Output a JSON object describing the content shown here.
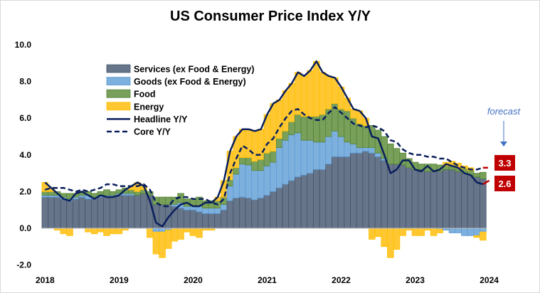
{
  "chart_data": {
    "type": "bar",
    "stacked": true,
    "title": "US Consumer Price Index Y/Y",
    "xlabel": "",
    "ylabel": "",
    "x_tick_labels": [
      "2018",
      "2019",
      "2020",
      "2021",
      "2022",
      "2023",
      "2024"
    ],
    "y_tick_labels": [
      "10.0",
      "8.0",
      "6.0",
      "4.0",
      "2.0",
      "0.0",
      "-2.0"
    ],
    "ylim": [
      -2,
      10
    ],
    "grid": false,
    "legend_placement": "top-left",
    "months_per_year_tick": 12,
    "series": [
      {
        "name": "Services (ex Food & Energy)",
        "kind": "bar",
        "color": "#67758a",
        "edge": "#44546a",
        "values": [
          1.7,
          1.7,
          1.7,
          1.6,
          1.5,
          1.6,
          1.7,
          1.6,
          1.6,
          1.7,
          1.7,
          1.7,
          1.8,
          1.8,
          1.8,
          1.8,
          1.9,
          1.8,
          1.3,
          1.3,
          1.3,
          1.2,
          1.1,
          1.0,
          1.0,
          0.9,
          0.8,
          0.8,
          0.8,
          1.0,
          1.5,
          1.65,
          1.7,
          1.65,
          1.55,
          1.65,
          1.8,
          2.0,
          2.2,
          2.4,
          2.6,
          2.8,
          2.9,
          3.0,
          3.2,
          3.2,
          3.5,
          3.9,
          3.9,
          3.9,
          4.1,
          4.1,
          4.2,
          4.1,
          3.9,
          3.7,
          3.5,
          3.5,
          3.45,
          3.3,
          3.2,
          3.2,
          3.1,
          3.1,
          3.1,
          3.2,
          3.2,
          3.1,
          3.0,
          2.9,
          2.8,
          2.7
        ]
      },
      {
        "name": "Goods (ex Food & Energy)",
        "kind": "bar",
        "color": "#7eb0de",
        "edge": "#5b9bd5",
        "values": [
          0.1,
          0.1,
          0.1,
          0.1,
          0.1,
          0.1,
          0.1,
          0.2,
          0.1,
          0.1,
          0.1,
          0.1,
          0.1,
          0.1,
          0.1,
          0.0,
          0.0,
          0.0,
          -0.2,
          -0.2,
          -0.1,
          0.1,
          0.3,
          0.2,
          0.2,
          0.3,
          0.3,
          0.3,
          0.3,
          0.3,
          0.8,
          1.3,
          1.8,
          1.8,
          1.6,
          1.5,
          1.6,
          1.6,
          2.2,
          2.4,
          2.5,
          2.4,
          1.9,
          1.8,
          1.5,
          1.5,
          1.5,
          1.4,
          1.1,
          0.8,
          0.5,
          0.3,
          0.2,
          0.3,
          0.2,
          0.1,
          0.0,
          0.0,
          0.0,
          0.0,
          0.0,
          0.0,
          0.0,
          0.0,
          -0.05,
          -0.1,
          -0.25,
          -0.25,
          -0.4,
          -0.4,
          -0.4,
          -0.2
        ]
      },
      {
        "name": "Food",
        "kind": "bar",
        "color": "#78a05a",
        "edge": "#548235",
        "values": [
          0.2,
          0.2,
          0.2,
          0.2,
          0.3,
          0.2,
          0.2,
          0.2,
          0.2,
          0.2,
          0.3,
          0.2,
          0.2,
          0.3,
          0.2,
          0.2,
          0.2,
          0.2,
          0.4,
          0.4,
          0.4,
          0.4,
          0.5,
          0.4,
          0.4,
          0.5,
          0.4,
          0.4,
          0.4,
          0.4,
          0.35,
          0.35,
          0.35,
          0.4,
          0.5,
          0.6,
          0.7,
          0.6,
          0.5,
          0.5,
          0.7,
          1.0,
          1.3,
          1.3,
          1.4,
          1.5,
          1.5,
          1.5,
          1.5,
          1.7,
          1.4,
          1.3,
          1.2,
          1.2,
          1.25,
          1.2,
          1.1,
          0.85,
          0.65,
          0.5,
          0.4,
          0.3,
          0.4,
          0.4,
          0.35,
          0.2,
          0.2,
          0.2,
          0.25,
          0.25,
          0.2,
          0.35
        ]
      },
      {
        "name": "Energy",
        "kind": "bar",
        "color": "#ffc832",
        "edge": "#ffc000",
        "values": [
          0.5,
          0.2,
          -0.1,
          -0.3,
          -0.4,
          0.0,
          0.0,
          -0.2,
          -0.3,
          -0.2,
          -0.4,
          -0.3,
          -0.3,
          -0.1,
          0.2,
          0.5,
          0.2,
          -0.5,
          -1.2,
          -1.4,
          -1.0,
          -0.7,
          -0.6,
          -0.2,
          -0.4,
          -0.5,
          -0.1,
          -0.1,
          0.2,
          0.9,
          1.55,
          1.7,
          1.55,
          1.55,
          1.65,
          1.65,
          2.1,
          2.6,
          2.1,
          2.2,
          2.1,
          2.3,
          2.2,
          2.5,
          3.0,
          2.3,
          1.8,
          1.4,
          1.2,
          0.7,
          0.5,
          0.7,
          0.4,
          -0.6,
          -0.45,
          -1.0,
          -1.6,
          -1.15,
          -0.4,
          -0.1,
          -0.4,
          -0.4,
          -0.1,
          -0.4,
          -0.2,
          0.2,
          0.25,
          0.25,
          0.15,
          0.15,
          -0.1,
          -0.45
        ]
      },
      {
        "name": "Headline Y/Y",
        "kind": "line",
        "style": "solid",
        "color": "#0a1f5c",
        "values": [
          2.5,
          2.2,
          1.9,
          1.6,
          1.5,
          1.9,
          2.0,
          1.8,
          1.6,
          1.8,
          1.7,
          1.7,
          1.8,
          2.1,
          2.3,
          2.5,
          2.3,
          1.5,
          0.3,
          0.1,
          0.6,
          1.0,
          1.3,
          1.4,
          1.2,
          1.2,
          1.4,
          1.4,
          1.7,
          2.6,
          4.2,
          5.0,
          5.4,
          5.4,
          5.3,
          5.4,
          6.2,
          6.8,
          7.0,
          7.5,
          7.9,
          8.5,
          8.3,
          8.6,
          9.1,
          8.5,
          8.3,
          8.2,
          7.7,
          7.1,
          6.5,
          6.4,
          6.0,
          5.0,
          4.9,
          4.0,
          3.0,
          3.2,
          3.7,
          3.7,
          3.2,
          3.1,
          3.4,
          3.1,
          3.2,
          3.5,
          3.4,
          3.3,
          3.0,
          2.9,
          2.5,
          2.4
        ],
        "forecast": 2.6
      },
      {
        "name": "Core Y/Y",
        "kind": "line",
        "style": "dashed",
        "color": "#0a1f5c",
        "values": [
          2.1,
          2.2,
          2.2,
          2.2,
          2.1,
          2.0,
          2.1,
          2.0,
          2.1,
          2.2,
          2.4,
          2.4,
          2.3,
          2.3,
          2.3,
          2.3,
          2.4,
          2.1,
          1.4,
          1.2,
          1.2,
          1.6,
          1.7,
          1.7,
          1.6,
          1.6,
          1.6,
          1.4,
          1.3,
          1.6,
          3.0,
          3.8,
          4.5,
          4.3,
          4.0,
          4.0,
          4.6,
          4.9,
          5.5,
          6.0,
          6.4,
          6.5,
          6.2,
          6.0,
          5.9,
          5.9,
          6.3,
          6.6,
          6.3,
          6.0,
          5.7,
          5.6,
          5.5,
          5.6,
          5.5,
          5.3,
          4.8,
          4.7,
          4.3,
          4.1,
          4.0,
          4.0,
          3.9,
          3.9,
          3.8,
          3.8,
          3.6,
          3.4,
          3.3,
          3.2,
          3.2,
          3.3
        ],
        "forecast": 3.3
      }
    ],
    "annotations": {
      "forecast_text": "forecast",
      "forecast_color": "#c00000",
      "core_forecast_label": "3.3",
      "headline_forecast_label": "2.6",
      "arrow_color": "#4472c4"
    }
  }
}
